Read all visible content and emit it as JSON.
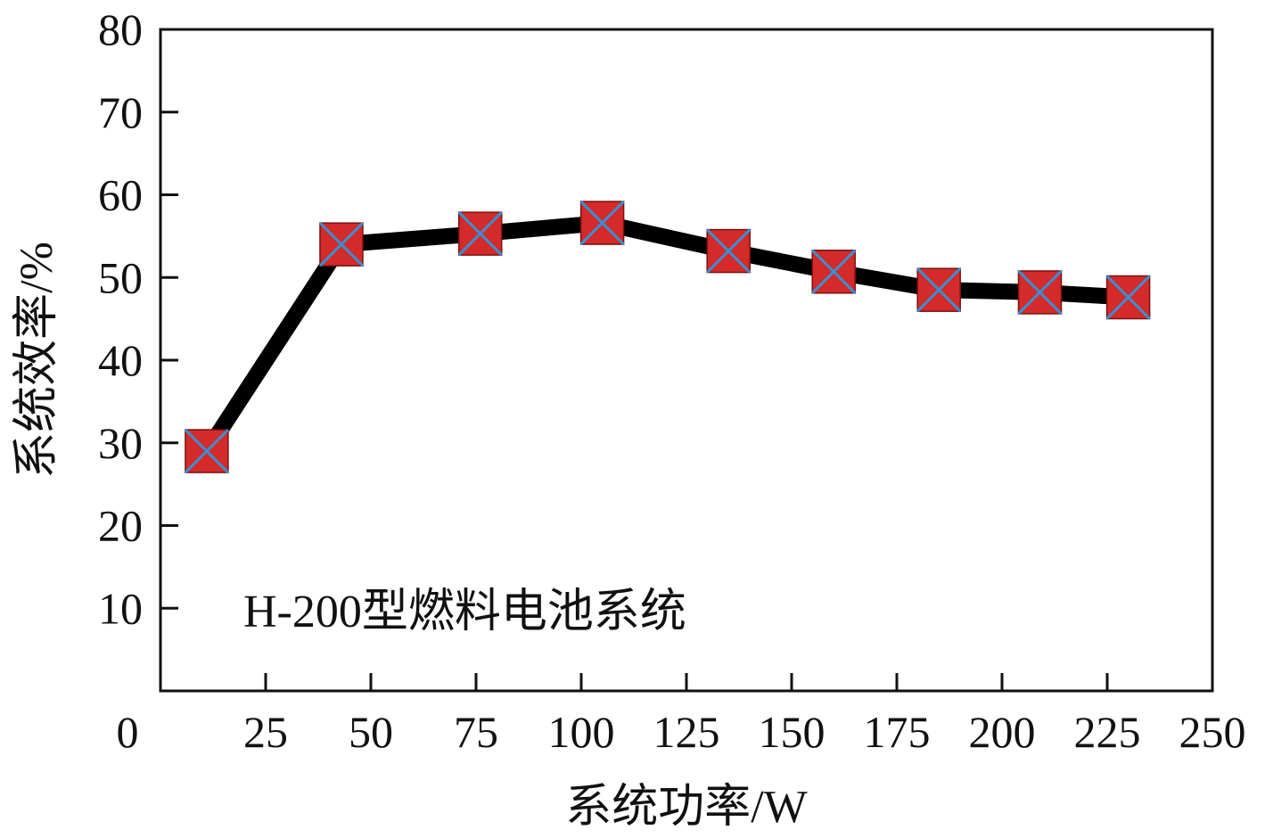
{
  "chart_data": {
    "type": "line",
    "title": "",
    "xlabel": "系统功率/W",
    "ylabel": "系统效率/%",
    "annotation": "H-200型燃料电池系统",
    "xlim": [
      0,
      250
    ],
    "ylim": [
      0,
      80
    ],
    "x_ticks": [
      25,
      50,
      75,
      100,
      125,
      150,
      175,
      200,
      225,
      250
    ],
    "y_ticks": [
      10,
      20,
      30,
      40,
      50,
      60,
      70,
      80
    ],
    "origin_label": "0",
    "grid": false,
    "legend": "none",
    "series": [
      {
        "x": [
          11,
          43,
          76,
          105,
          135,
          160,
          185,
          209,
          230
        ],
        "y": [
          29,
          54,
          55.3,
          56.6,
          53.2,
          50.7,
          48.5,
          48.2,
          47.6
        ],
        "line_color": "#000000",
        "marker_fill": "#d42a2a",
        "marker_cross": "#3a8fd0"
      }
    ]
  }
}
